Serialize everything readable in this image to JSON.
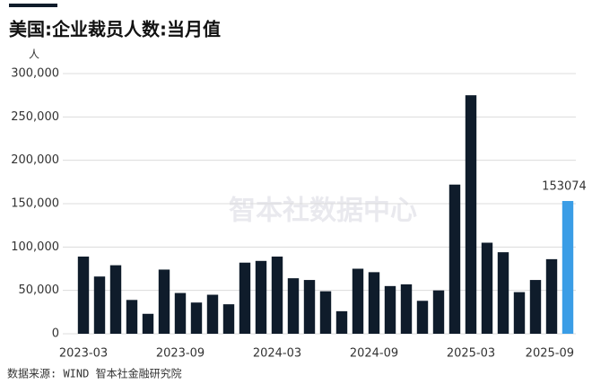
{
  "chart_data": {
    "type": "bar",
    "title": "美国:企业裁员人数:当月值",
    "unit": "人",
    "source": "数据来源: WIND 智本社金融研究院",
    "watermark": "智本社数据中心",
    "categories": [
      "2023-03",
      null,
      null,
      null,
      null,
      null,
      "2023-09",
      null,
      null,
      null,
      null,
      null,
      "2024-03",
      null,
      null,
      null,
      null,
      null,
      "2024-09",
      null,
      null,
      null,
      null,
      null,
      "2025-03",
      null,
      null,
      null,
      null,
      null,
      "2025-09"
    ],
    "values": [
      89000,
      66000,
      79000,
      39000,
      23000,
      74000,
      47000,
      36000,
      45000,
      34000,
      82000,
      84000,
      89000,
      64000,
      62000,
      49000,
      26000,
      75000,
      71000,
      55000,
      57000,
      38000,
      50000,
      172000,
      275000,
      105000,
      94000,
      48000,
      62000,
      86000,
      153074
    ],
    "colors": [
      "#0f1c2b",
      "#0f1c2b",
      "#0f1c2b",
      "#0f1c2b",
      "#0f1c2b",
      "#0f1c2b",
      "#0f1c2b",
      "#0f1c2b",
      "#0f1c2b",
      "#0f1c2b",
      "#0f1c2b",
      "#0f1c2b",
      "#0f1c2b",
      "#0f1c2b",
      "#0f1c2b",
      "#0f1c2b",
      "#0f1c2b",
      "#0f1c2b",
      "#0f1c2b",
      "#0f1c2b",
      "#0f1c2b",
      "#0f1c2b",
      "#0f1c2b",
      "#0f1c2b",
      "#0f1c2b",
      "#0f1c2b",
      "#0f1c2b",
      "#0f1c2b",
      "#0f1c2b",
      "#0f1c2b",
      "#3a9de6"
    ],
    "labeled_bar": 30,
    "ylim": [
      0,
      300000
    ],
    "yticks": [
      0,
      {
        "value": 50000,
        "label": "50,000"
      },
      {
        "value": 100000,
        "label": "100,000"
      },
      {
        "value": 150000,
        "label": "150,000"
      },
      {
        "value": 200000,
        "label": "200,000"
      },
      {
        "value": 250000,
        "label": "250,000"
      },
      {
        "value": 300000,
        "label": "300,000"
      }
    ],
    "grid": true
  }
}
